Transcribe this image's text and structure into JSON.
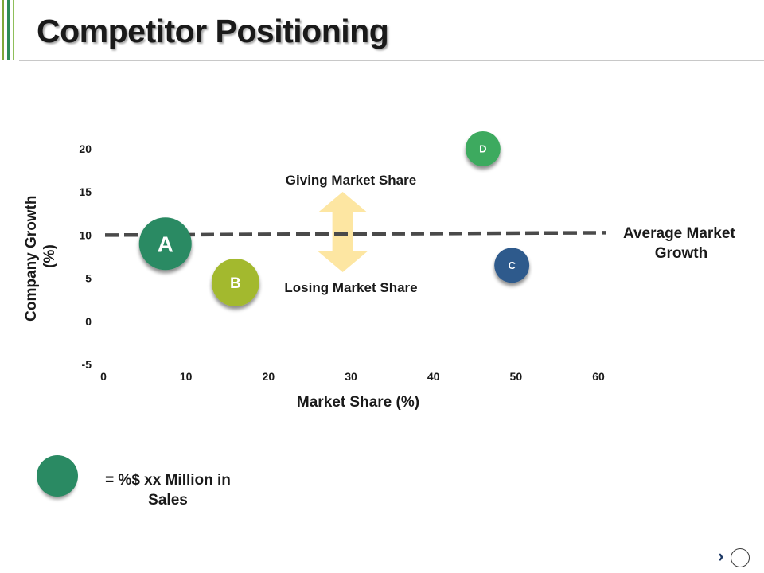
{
  "page": {
    "title": "Competitor Positioning",
    "accent_colors": [
      "#7fa83a",
      "#2e8b57",
      "#8fbf5a"
    ]
  },
  "chart_data": {
    "type": "scatter",
    "title": "",
    "xlabel": "Market Share (%)",
    "ylabel": "Company Growth\n(%)",
    "xlim": [
      0,
      60
    ],
    "ylim": [
      -5,
      20
    ],
    "xticks": [
      "0",
      "10",
      "20",
      "30",
      "40",
      "50",
      "60"
    ],
    "yticks": [
      "20",
      "15",
      "10",
      "5",
      "0",
      "-5"
    ],
    "grid": false,
    "points": [
      {
        "label": "A",
        "x": 7.5,
        "y": 9,
        "color": "#2a8a63",
        "size": "large"
      },
      {
        "label": "B",
        "x": 16,
        "y": 4.5,
        "color": "#a3b92e",
        "size": "medium"
      },
      {
        "label": "C",
        "x": 49.5,
        "y": 6.5,
        "color": "#2f5a8c",
        "size": "small"
      },
      {
        "label": "D",
        "x": 46,
        "y": 20,
        "color": "#3daa5e",
        "size": "small"
      }
    ],
    "reference_line": {
      "y": 10,
      "label": "Average Market\nGrowth",
      "style": "dashed",
      "color": "#4a4a4a"
    },
    "annotations": {
      "up": "Giving Market Share",
      "down": "Losing Market Share",
      "arrow_x": 29,
      "arrow_color": "#fde6a2"
    }
  },
  "legend": {
    "color": "#2a8a63",
    "text": "= %$ xx Million in Sales"
  },
  "nav": {
    "icon": "chevron-right-icon"
  }
}
